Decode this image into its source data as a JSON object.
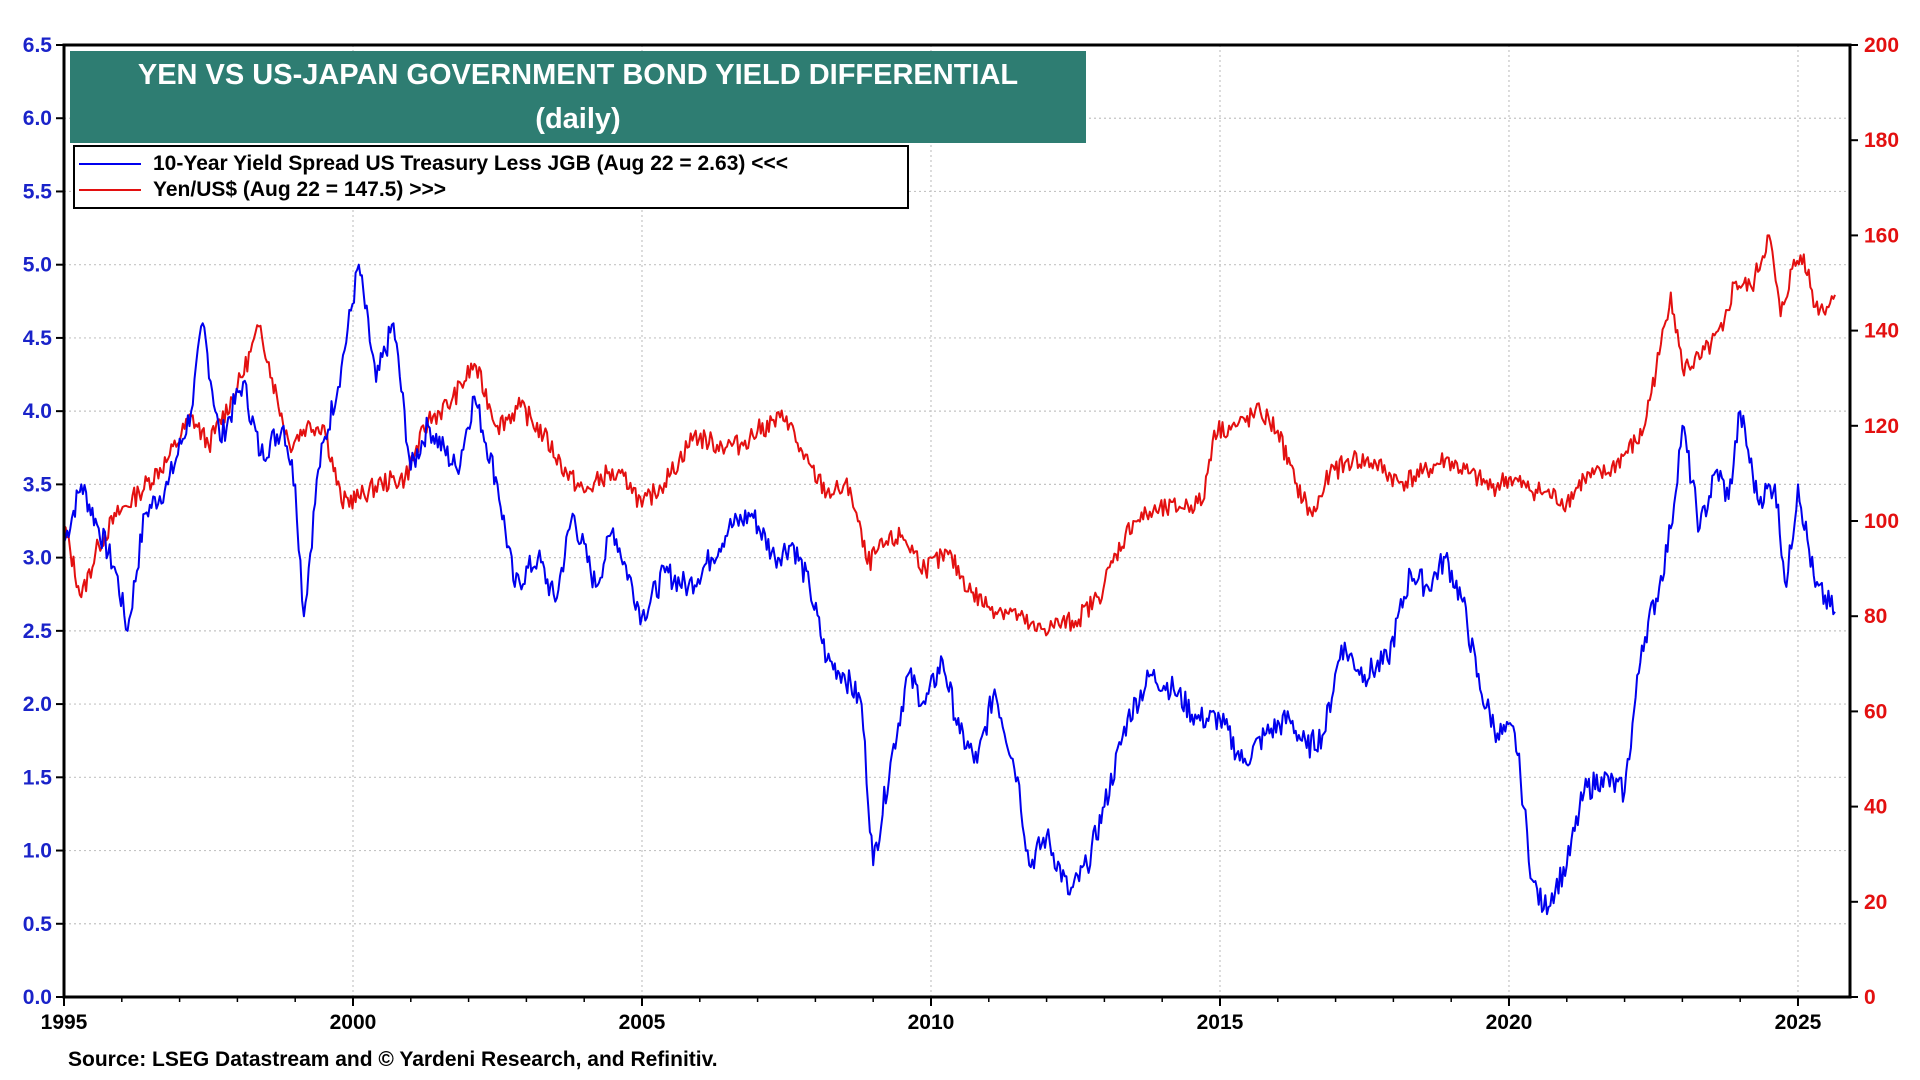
{
  "chart_data": {
    "type": "line",
    "title": "YEN VS US-JAPAN GOVERNMENT BOND YIELD DIFFERENTIAL",
    "subtitle": "(daily)",
    "source": "Source: LSEG Datastream and © Yardeni Research, and Refinitiv.",
    "x_axis": {
      "range": [
        1995,
        2025.9
      ],
      "ticks": [
        "1995",
        "2000",
        "2005",
        "2010",
        "2015",
        "2020",
        "2025"
      ]
    },
    "y_axis_left": {
      "range": [
        0,
        6.5
      ],
      "ticks": [
        "0.0",
        "0.5",
        "1.0",
        "1.5",
        "2.0",
        "2.5",
        "3.0",
        "3.5",
        "4.0",
        "4.5",
        "5.0",
        "5.5",
        "6.0",
        "6.5"
      ],
      "color": "#1a23c9"
    },
    "y_axis_right": {
      "range": [
        0,
        200
      ],
      "ticks": [
        "0",
        "20",
        "40",
        "60",
        "80",
        "100",
        "120",
        "140",
        "160",
        "180",
        "200"
      ],
      "color": "#e31010"
    },
    "grid": true,
    "legend_position": "top-left",
    "series": [
      {
        "name": "10-Year Yield Spread US Treasury Less JGB (Aug 22 = 2.63) <<<",
        "axis": "left",
        "color": "#0000ee",
        "x": [
          1995.0,
          1995.3,
          1995.6,
          1995.9,
          1996.1,
          1996.4,
          1996.8,
          1997.2,
          1997.4,
          1997.7,
          1998.1,
          1998.4,
          1998.8,
          1999.0,
          1999.15,
          1999.4,
          1999.8,
          2000.1,
          2000.4,
          2000.7,
          2001.0,
          2001.3,
          2001.8,
          2002.1,
          2002.5,
          2002.8,
          2003.2,
          2003.5,
          2003.8,
          2004.2,
          2004.5,
          2005.0,
          2005.4,
          2005.8,
          2006.2,
          2006.5,
          2006.9,
          2007.3,
          2007.6,
          2007.9,
          2008.2,
          2008.5,
          2008.8,
          2009.0,
          2009.3,
          2009.6,
          2009.9,
          2010.2,
          2010.5,
          2010.8,
          2011.1,
          2011.5,
          2011.7,
          2012.0,
          2012.4,
          2012.7,
          2013.0,
          2013.4,
          2013.8,
          2014.2,
          2014.6,
          2015.0,
          2015.4,
          2015.8,
          2016.2,
          2016.5,
          2016.8,
          2017.1,
          2017.5,
          2017.9,
          2018.3,
          2018.6,
          2018.9,
          2019.2,
          2019.5,
          2019.8,
          2020.1,
          2020.2,
          2020.4,
          2020.6,
          2021.0,
          2021.3,
          2021.6,
          2022.0,
          2022.3,
          2022.6,
          2022.8,
          2023.0,
          2023.3,
          2023.6,
          2023.8,
          2024.0,
          2024.3,
          2024.6,
          2024.8,
          2025.0,
          2025.3,
          2025.64
        ],
        "values": [
          3.1,
          3.5,
          3.2,
          2.9,
          2.5,
          3.3,
          3.5,
          4.0,
          4.6,
          3.8,
          4.2,
          3.7,
          3.9,
          3.5,
          2.6,
          3.6,
          4.3,
          5.0,
          4.2,
          4.6,
          3.6,
          3.9,
          3.6,
          4.1,
          3.5,
          2.8,
          3.0,
          2.7,
          3.3,
          2.8,
          3.2,
          2.6,
          2.9,
          2.8,
          3.0,
          3.2,
          3.3,
          3.0,
          3.1,
          2.8,
          2.3,
          2.2,
          2.0,
          0.9,
          1.6,
          2.2,
          2.0,
          2.3,
          1.8,
          1.6,
          2.1,
          1.5,
          0.9,
          1.1,
          0.7,
          0.9,
          1.3,
          1.9,
          2.2,
          2.1,
          1.9,
          1.9,
          1.6,
          1.8,
          1.9,
          1.7,
          1.8,
          2.4,
          2.2,
          2.3,
          2.9,
          2.8,
          3.0,
          2.7,
          2.1,
          1.8,
          1.8,
          1.5,
          0.8,
          0.6,
          0.9,
          1.4,
          1.5,
          1.4,
          2.4,
          2.8,
          3.2,
          3.9,
          3.2,
          3.6,
          3.4,
          4.0,
          3.4,
          3.5,
          2.8,
          3.5,
          2.8,
          2.63
        ]
      },
      {
        "name": "Yen/US$ (Aug 22 = 147.5) >>>",
        "axis": "right",
        "color": "#e31010",
        "x": [
          1995.0,
          1995.3,
          1995.6,
          1995.9,
          1996.3,
          1996.8,
          1997.2,
          1997.5,
          1998.0,
          1998.4,
          1998.6,
          1998.9,
          1999.2,
          1999.5,
          1999.8,
          2000.1,
          2000.5,
          2000.9,
          2001.3,
          2001.7,
          2002.1,
          2002.5,
          2002.9,
          2003.3,
          2003.7,
          2004.0,
          2004.4,
          2004.8,
          2005.0,
          2005.5,
          2005.9,
          2006.3,
          2006.7,
          2007.0,
          2007.5,
          2007.8,
          2008.2,
          2008.6,
          2008.9,
          2009.2,
          2009.5,
          2009.9,
          2010.3,
          2010.7,
          2011.0,
          2011.4,
          2011.8,
          2012.1,
          2012.5,
          2012.9,
          2013.2,
          2013.5,
          2013.9,
          2014.3,
          2014.7,
          2014.9,
          2015.3,
          2015.7,
          2016.0,
          2016.3,
          2016.6,
          2016.9,
          2017.3,
          2017.7,
          2018.1,
          2018.5,
          2018.9,
          2019.3,
          2019.7,
          2020.0,
          2020.3,
          2020.6,
          2021.0,
          2021.3,
          2021.7,
          2022.0,
          2022.3,
          2022.6,
          2022.8,
          2023.0,
          2023.3,
          2023.7,
          2023.9,
          2024.2,
          2024.5,
          2024.7,
          2024.9,
          2025.1,
          2025.3,
          2025.5,
          2025.64
        ],
        "values": [
          99,
          84,
          95,
          101,
          106,
          113,
          122,
          116,
          128,
          141,
          130,
          116,
          120,
          120,
          104,
          105,
          108,
          109,
          121,
          125,
          133,
          120,
          124,
          118,
          110,
          106,
          110,
          108,
          103,
          110,
          118,
          116,
          116,
          119,
          122,
          113,
          106,
          107,
          91,
          95,
          97,
          90,
          93,
          85,
          82,
          81,
          77,
          78,
          79,
          84,
          93,
          100,
          102,
          103,
          104,
          119,
          120,
          123,
          119,
          108,
          101,
          110,
          113,
          112,
          108,
          110,
          113,
          110,
          107,
          109,
          107,
          106,
          104,
          109,
          110,
          114,
          118,
          135,
          148,
          132,
          134,
          140,
          150,
          149,
          160,
          143,
          153,
          156,
          145,
          145,
          147.5
        ]
      }
    ]
  }
}
